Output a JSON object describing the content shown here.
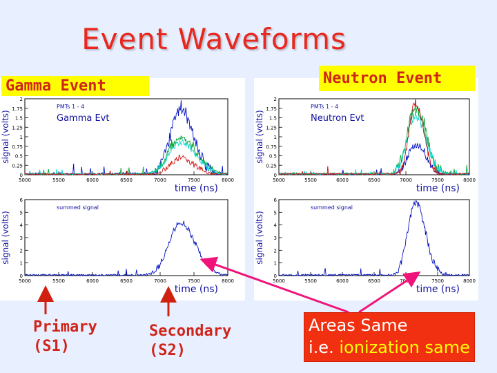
{
  "title": "Event Waveforms",
  "labels": {
    "gamma": "Gamma Event",
    "neutron": "Neutron Event"
  },
  "annotations": {
    "primary_line1": "Primary",
    "primary_line2": "(S1)",
    "secondary_line1": "Secondary",
    "secondary_line2": "(S2)",
    "areas_line1": "Areas Same",
    "areas_line2_prefix": "i.e.",
    "areas_line2_highlight": "ionization same"
  },
  "colors": {
    "title": "#e8281e",
    "label_bg": "#ffff00",
    "label_text": "#d0241a",
    "arrow": "#f0147a",
    "box_bg": "#f03010",
    "trace_blue": "#0010c0",
    "trace_green": "#00a030",
    "trace_cyan": "#00d8d0",
    "trace_red": "#d01010"
  },
  "chart_data": [
    {
      "id": "gamma-top",
      "type": "line",
      "legend": "PMTs 1 - 4",
      "caption": "Gamma Evt",
      "ylabel": "signal (volts)",
      "xlabel": "time (ns)",
      "xlim": [
        5000,
        8000
      ],
      "ylim": [
        0,
        2
      ],
      "xticks": [
        5000,
        5500,
        6000,
        6500,
        7000,
        7500,
        8000
      ],
      "yticks": [
        0,
        0.25,
        0.5,
        0.75,
        1,
        1.25,
        1.5,
        1.75,
        2
      ],
      "ytick_labels": [
        "0",
        "0.25",
        "0.5",
        "0.75",
        "1",
        "1.25",
        "1.5",
        "1.75",
        "2"
      ],
      "series": [
        {
          "name": "blue",
          "peak_x": 7300,
          "peak_y": 1.7,
          "width": 150,
          "noise": 0.15
        },
        {
          "name": "green",
          "peak_x": 7300,
          "peak_y": 0.95,
          "width": 180,
          "noise": 0.1
        },
        {
          "name": "cyan",
          "peak_x": 7300,
          "peak_y": 0.85,
          "width": 180,
          "noise": 0.08
        },
        {
          "name": "red",
          "peak_x": 7300,
          "peak_y": 0.45,
          "width": 150,
          "noise": 0.08
        }
      ]
    },
    {
      "id": "gamma-bottom",
      "type": "line",
      "legend": "summed signal",
      "ylabel": "signal (volts)",
      "xlabel": "time (ns)",
      "xlim": [
        5000,
        8000
      ],
      "ylim": [
        0,
        6
      ],
      "xticks": [
        5000,
        5500,
        6000,
        6500,
        7000,
        7500,
        8000
      ],
      "yticks": [
        0,
        1,
        2,
        3,
        4,
        5,
        6
      ],
      "ytick_labels": [
        "0",
        "1",
        "2",
        "3",
        "4",
        "5",
        "6"
      ],
      "series": [
        {
          "name": "summed",
          "peak_x": 7300,
          "peak_y": 4.2,
          "width": 170,
          "noise": 0.25
        }
      ]
    },
    {
      "id": "neutron-top",
      "type": "line",
      "legend": "PMTs 1 - 4",
      "caption": "Neutron Evt",
      "ylabel": "signal (volts)",
      "xlabel": "time (ns)",
      "xlim": [
        5000,
        8000
      ],
      "ylim": [
        0,
        2
      ],
      "xticks": [
        5000,
        5500,
        6000,
        6500,
        7000,
        7500,
        8000
      ],
      "yticks": [
        0,
        0.25,
        0.5,
        0.75,
        1,
        1.25,
        1.5,
        1.75,
        2
      ],
      "ytick_labels": [
        "0",
        "0.25",
        "0.5",
        "0.75",
        "1",
        "1.25",
        "1.5",
        "1.75",
        "2"
      ],
      "series": [
        {
          "name": "blue",
          "peak_x": 7150,
          "peak_y": 0.8,
          "width": 120,
          "noise": 0.1
        },
        {
          "name": "green",
          "peak_x": 7150,
          "peak_y": 1.75,
          "width": 130,
          "noise": 0.15
        },
        {
          "name": "cyan",
          "peak_x": 7150,
          "peak_y": 1.55,
          "width": 130,
          "noise": 0.12
        },
        {
          "name": "red",
          "peak_x": 7150,
          "peak_y": 1.9,
          "width": 100,
          "noise": 0.1
        }
      ]
    },
    {
      "id": "neutron-bottom",
      "type": "line",
      "legend": "summed signal",
      "ylabel": "signal (volts)",
      "xlabel": "time (ns)",
      "xlim": [
        5000,
        8000
      ],
      "ylim": [
        0,
        6
      ],
      "xticks": [
        5000,
        5500,
        6000,
        6500,
        7000,
        7500,
        8000
      ],
      "yticks": [
        0,
        1,
        2,
        3,
        4,
        5,
        6
      ],
      "ytick_labels": [
        "0",
        "1",
        "2",
        "3",
        "4",
        "5",
        "6"
      ],
      "series": [
        {
          "name": "summed",
          "peak_x": 7150,
          "peak_y": 5.8,
          "width": 120,
          "noise": 0.3
        }
      ]
    }
  ]
}
